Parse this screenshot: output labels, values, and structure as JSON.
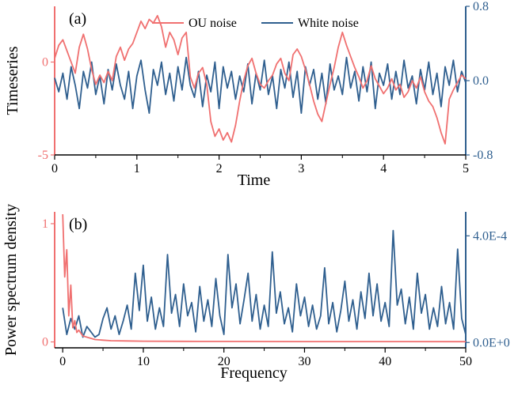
{
  "colors": {
    "ou": "#F07070",
    "white": "#2F5F8F",
    "axis": "#000000"
  },
  "chart_data": [
    {
      "type": "line",
      "panel_label": "(a)",
      "xlabel": "Time",
      "ylabel": "Timeseries",
      "ylabel_right": "",
      "xlim": [
        0,
        5
      ],
      "ylim_left": [
        -5,
        3
      ],
      "ylim_right": [
        -0.8,
        0.8
      ],
      "x_ticks": [
        "0",
        "1",
        "2",
        "3",
        "4",
        "5"
      ],
      "y_ticks_left": [
        "-5",
        "0"
      ],
      "y_ticks_right": [
        "-0.8",
        "0.0",
        "0.8"
      ],
      "legend": {
        "placement": "top-center",
        "entries": [
          "OU noise",
          "White noise"
        ]
      },
      "grid": false,
      "series": [
        {
          "name": "OU noise",
          "axis": "left",
          "color_key": "ou",
          "x": [
            0,
            0.05,
            0.1,
            0.15,
            0.2,
            0.25,
            0.3,
            0.35,
            0.4,
            0.45,
            0.5,
            0.55,
            0.6,
            0.65,
            0.7,
            0.75,
            0.8,
            0.85,
            0.9,
            0.95,
            1.0,
            1.05,
            1.1,
            1.15,
            1.2,
            1.25,
            1.3,
            1.35,
            1.4,
            1.45,
            1.5,
            1.55,
            1.6,
            1.65,
            1.7,
            1.75,
            1.8,
            1.85,
            1.9,
            1.95,
            2.0,
            2.05,
            2.1,
            2.15,
            2.2,
            2.25,
            2.3,
            2.35,
            2.4,
            2.45,
            2.5,
            2.55,
            2.6,
            2.65,
            2.7,
            2.75,
            2.8,
            2.85,
            2.9,
            2.95,
            3.0,
            3.05,
            3.1,
            3.15,
            3.2,
            3.25,
            3.3,
            3.35,
            3.4,
            3.45,
            3.5,
            3.55,
            3.6,
            3.65,
            3.7,
            3.75,
            3.8,
            3.85,
            3.9,
            3.95,
            4.0,
            4.05,
            4.1,
            4.15,
            4.2,
            4.25,
            4.3,
            4.35,
            4.4,
            4.45,
            4.5,
            4.55,
            4.6,
            4.65,
            4.7,
            4.75,
            4.8,
            4.85,
            4.9,
            4.95,
            5.0
          ],
          "y": [
            0.2,
            0.9,
            1.2,
            0.6,
            0.0,
            -0.6,
            0.8,
            1.5,
            0.7,
            -0.4,
            -1.2,
            -0.7,
            -1.1,
            -0.5,
            -1.0,
            0.3,
            0.8,
            0.1,
            0.7,
            1.0,
            1.6,
            2.2,
            1.8,
            2.3,
            2.1,
            2.5,
            1.9,
            0.8,
            1.6,
            1.2,
            0.4,
            1.3,
            1.6,
            -0.8,
            -1.4,
            -0.6,
            -0.3,
            -1.2,
            -3.2,
            -4.0,
            -3.6,
            -4.2,
            -3.8,
            -4.3,
            -3.4,
            -2.1,
            -1.0,
            -0.2,
            0.2,
            -0.6,
            -1.2,
            -1.4,
            -1.0,
            -0.7,
            -0.1,
            0.2,
            -0.6,
            -1.0,
            0.4,
            0.7,
            0.3,
            -0.4,
            -1.2,
            -2.1,
            -2.8,
            -3.2,
            -2.2,
            -1.2,
            -0.3,
            0.8,
            1.6,
            0.9,
            0.3,
            -0.3,
            -0.8,
            -1.4,
            -1.0,
            -0.2,
            -0.9,
            -1.3,
            -1.7,
            -1.4,
            -0.9,
            -1.5,
            -1.2,
            -1.9,
            -1.6,
            -1.0,
            -1.4,
            -0.8,
            -1.6,
            -2.1,
            -2.4,
            -3.0,
            -3.8,
            -4.4,
            -2.0,
            -1.5,
            -1.1,
            -0.7,
            -0.9
          ]
        },
        {
          "name": "White noise",
          "axis": "right",
          "color_key": "white",
          "x": [
            0,
            0.05,
            0.1,
            0.15,
            0.2,
            0.25,
            0.3,
            0.35,
            0.4,
            0.45,
            0.5,
            0.55,
            0.6,
            0.65,
            0.7,
            0.75,
            0.8,
            0.85,
            0.9,
            0.95,
            1.0,
            1.05,
            1.1,
            1.15,
            1.2,
            1.25,
            1.3,
            1.35,
            1.4,
            1.45,
            1.5,
            1.55,
            1.6,
            1.65,
            1.7,
            1.75,
            1.8,
            1.85,
            1.9,
            1.95,
            2.0,
            2.05,
            2.1,
            2.15,
            2.2,
            2.25,
            2.3,
            2.35,
            2.4,
            2.45,
            2.5,
            2.55,
            2.6,
            2.65,
            2.7,
            2.75,
            2.8,
            2.85,
            2.9,
            2.95,
            3.0,
            3.05,
            3.1,
            3.15,
            3.2,
            3.25,
            3.3,
            3.35,
            3.4,
            3.45,
            3.5,
            3.55,
            3.6,
            3.65,
            3.7,
            3.75,
            3.8,
            3.85,
            3.9,
            3.95,
            4.0,
            4.05,
            4.1,
            4.15,
            4.2,
            4.25,
            4.3,
            4.35,
            4.4,
            4.45,
            4.5,
            4.55,
            4.6,
            4.65,
            4.7,
            4.75,
            4.8,
            4.85,
            4.9,
            4.95,
            5.0
          ],
          "y": [
            0.03,
            -0.12,
            0.08,
            -0.2,
            0.15,
            -0.05,
            -0.3,
            0.1,
            -0.08,
            0.2,
            -0.15,
            0.05,
            -0.25,
            0.12,
            -0.1,
            0.18,
            -0.05,
            -0.2,
            0.1,
            -0.3,
            0.05,
            0.22,
            -0.1,
            -0.35,
            0.12,
            -0.05,
            0.2,
            -0.15,
            0.08,
            -0.22,
            0.15,
            -0.1,
            0.25,
            -0.05,
            -0.18,
            0.1,
            -0.28,
            0.06,
            -0.12,
            0.2,
            -0.3,
            0.15,
            -0.08,
            0.1,
            -0.2,
            0.05,
            -0.12,
            0.18,
            -0.25,
            0.08,
            -0.1,
            0.22,
            -0.15,
            0.05,
            -0.3,
            0.12,
            -0.08,
            0.2,
            -0.18,
            0.1,
            -0.35,
            0.15,
            -0.05,
            0.12,
            -0.2,
            0.08,
            -0.25,
            0.18,
            -0.1,
            0.05,
            -0.15,
            0.25,
            -0.08,
            0.1,
            -0.22,
            0.15,
            -0.12,
            0.2,
            -0.3,
            0.08,
            -0.05,
            0.18,
            -0.2,
            0.1,
            -0.15,
            0.22,
            -0.08,
            0.05,
            -0.25,
            0.12,
            -0.1,
            0.2,
            -0.15,
            0.08,
            -0.28,
            0.15,
            -0.05,
            0.22,
            -0.12,
            0.1,
            -0.02
          ]
        }
      ]
    },
    {
      "type": "line",
      "panel_label": "(b)",
      "xlabel": "Frequency",
      "ylabel": "Power spectrum density",
      "ylabel_right": "",
      "xlim": [
        -1,
        50
      ],
      "ylim_left": [
        -0.05,
        1.1
      ],
      "ylim_right": [
        -2e-05,
        0.00049
      ],
      "x_ticks": [
        "0",
        "10",
        "20",
        "30",
        "40",
        "50"
      ],
      "y_ticks_left": [
        "0",
        "1"
      ],
      "y_ticks_right": [
        "0.0E+0",
        "4.0E-4"
      ],
      "grid": false,
      "series": [
        {
          "name": "OU noise",
          "axis": "left",
          "color_key": "ou",
          "x": [
            0,
            0.25,
            0.5,
            0.75,
            1.0,
            1.25,
            1.5,
            1.75,
            2.0,
            2.5,
            3.0,
            3.5,
            4.0,
            5.0,
            6.0,
            8.0,
            10.0,
            15.0,
            20.0,
            30.0,
            40.0,
            50.0
          ],
          "y": [
            1.08,
            0.55,
            0.78,
            0.22,
            0.48,
            0.12,
            0.18,
            0.08,
            0.1,
            0.05,
            0.04,
            0.03,
            0.02,
            0.015,
            0.01,
            0.008,
            0.006,
            0.005,
            0.004,
            0.003,
            0.003,
            0.002
          ]
        },
        {
          "name": "White noise",
          "axis": "right",
          "color_key": "white",
          "x": [
            0,
            0.5,
            1,
            1.5,
            2,
            2.5,
            3,
            3.5,
            4,
            4.5,
            5,
            5.5,
            6,
            6.5,
            7,
            7.5,
            8,
            8.5,
            9,
            9.5,
            10,
            10.5,
            11,
            11.5,
            12,
            12.5,
            13,
            13.5,
            14,
            14.5,
            15,
            15.5,
            16,
            16.5,
            17,
            17.5,
            18,
            18.5,
            19,
            19.5,
            20,
            20.5,
            21,
            21.5,
            22,
            22.5,
            23,
            23.5,
            24,
            24.5,
            25,
            25.5,
            26,
            26.5,
            27,
            27.5,
            28,
            28.5,
            29,
            29.5,
            30,
            30.5,
            31,
            31.5,
            32,
            32.5,
            33,
            33.5,
            34,
            34.5,
            35,
            35.5,
            36,
            36.5,
            37,
            37.5,
            38,
            38.5,
            39,
            39.5,
            40,
            40.5,
            41,
            41.5,
            42,
            42.5,
            43,
            43.5,
            44,
            44.5,
            45,
            45.5,
            46,
            46.5,
            47,
            47.5,
            48,
            48.5,
            49,
            49.5,
            50
          ],
          "y": [
            0.00013,
            3e-05,
            9e-05,
            5e-05,
            0.0001,
            2e-05,
            6e-05,
            4e-05,
            2e-05,
            3e-05,
            9e-05,
            0.00013,
            5e-05,
            0.0001,
            3e-05,
            8e-05,
            0.00014,
            5e-05,
            0.00026,
            0.00012,
            0.00029,
            8e-05,
            0.00017,
            5e-05,
            0.00013,
            6e-05,
            0.00033,
            0.00011,
            0.00018,
            6e-05,
            0.00022,
            0.0001,
            0.00015,
            4e-05,
            0.00021,
            8e-05,
            0.00016,
            6e-05,
            0.00024,
            0.0001,
            3e-05,
            0.00033,
            0.00013,
            0.00022,
            7e-05,
            0.00016,
            0.00026,
            8e-05,
            0.00018,
            5e-05,
            0.00014,
            6e-05,
            0.00034,
            0.00011,
            0.00019,
            7e-05,
            0.00013,
            4e-05,
            0.00022,
            0.0001,
            0.00017,
            6e-05,
            0.00014,
            5e-05,
            0.0001,
            0.00028,
            7e-05,
            0.00015,
            4e-05,
            0.00012,
            0.00023,
            8e-05,
            0.00016,
            5e-05,
            0.00019,
            9e-05,
            0.00026,
            0.0001,
            0.00022,
            8e-05,
            0.00015,
            6e-05,
            0.00042,
            0.00014,
            0.0002,
            7e-05,
            0.00017,
            5e-05,
            0.00026,
            0.00011,
            0.00018,
            5e-05,
            0.00013,
            6e-05,
            0.00021,
            7e-05,
            0.00015,
            5e-05,
            0.00035,
            9e-05,
            3e-05
          ]
        }
      ]
    }
  ]
}
